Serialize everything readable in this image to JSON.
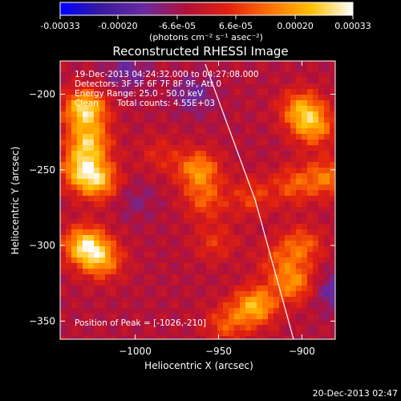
{
  "colorbar": {
    "tick_labels": [
      "-0.00033",
      "-0.00020",
      "-6.6e-05",
      "6.6e-05",
      "0.00020",
      "0.00033"
    ],
    "tick_values": [
      -0.00033,
      -0.0002,
      -6.6e-05,
      6.6e-05,
      0.0002,
      0.00033
    ],
    "range": [
      -0.00033,
      0.00033
    ],
    "units_label": "(photons cm⁻² s⁻¹ asec⁻²)"
  },
  "info": {
    "time_range": "19-Dec-2013 04:24:32.000 to 04:27:08.000",
    "detectors": "Detectors: 3F 5F 6F 7F 8F 9F, Att 0",
    "energy_range": "Energy Range: 25.0 - 50.0 keV",
    "algorithm": "Clean",
    "total_counts": "Total counts: 4.55E+03",
    "peak_position": "Position of Peak = [-1026,-210]"
  },
  "footer": {
    "timestamp": "20-Dec-2013 02:47"
  },
  "chart_data": {
    "type": "heatmap",
    "title": "Reconstructed RHESSI Image",
    "xlabel": "Heliocentric X (arcsec)",
    "ylabel": "Heliocentric Y (arcsec)",
    "xlim": [
      -1045,
      -880
    ],
    "ylim": [
      -362,
      -178
    ],
    "x_ticks": [
      -1000,
      -950,
      -900
    ],
    "x_tick_labels": [
      "−1000",
      "−950",
      "−900"
    ],
    "y_ticks": [
      -200,
      -250,
      -300,
      -350
    ],
    "y_tick_labels": [
      "−200",
      "−250",
      "−300",
      "−350"
    ],
    "colormap": "rainbow-like: blue - purple - red - orange - yellow - white",
    "colormap_stops": [
      "#0000ff",
      "#3a1a9c",
      "#6a2aa0",
      "#b0103a",
      "#e02010",
      "#ff7000",
      "#ffc000",
      "#ffffff"
    ],
    "background_value": -4e-05,
    "sources": [
      {
        "x": -1030,
        "y": -210,
        "value": 0.00032
      },
      {
        "x": -1028,
        "y": -232,
        "value": 0.00026
      },
      {
        "x": -1032,
        "y": -250,
        "value": 0.00024
      },
      {
        "x": -1022,
        "y": -258,
        "value": 0.00022
      },
      {
        "x": -1030,
        "y": -300,
        "value": 0.0003
      },
      {
        "x": -1020,
        "y": -310,
        "value": 0.0002
      },
      {
        "x": -985,
        "y": -240,
        "value": 8e-05
      },
      {
        "x": -962,
        "y": -250,
        "value": 0.00022
      },
      {
        "x": -958,
        "y": -270,
        "value": 0.00014
      },
      {
        "x": -952,
        "y": -298,
        "value": 0.0001
      },
      {
        "x": -930,
        "y": -268,
        "value": 0.00012
      },
      {
        "x": -900,
        "y": -210,
        "value": 0.00022
      },
      {
        "x": -893,
        "y": -222,
        "value": 0.0002
      },
      {
        "x": -885,
        "y": -255,
        "value": 0.00018
      },
      {
        "x": -905,
        "y": -260,
        "value": 0.00014
      },
      {
        "x": -900,
        "y": -300,
        "value": 0.00016
      },
      {
        "x": -905,
        "y": -325,
        "value": 0.0002
      },
      {
        "x": -928,
        "y": -340,
        "value": 0.00026
      },
      {
        "x": -945,
        "y": -352,
        "value": 0.00014
      },
      {
        "x": -915,
        "y": -310,
        "value": 0.0001
      },
      {
        "x": -965,
        "y": -200,
        "value": -0.0001
      },
      {
        "x": -1000,
        "y": -270,
        "value": -6e-05
      },
      {
        "x": -1005,
        "y": -185,
        "value": -0.0001
      },
      {
        "x": -880,
        "y": -330,
        "value": -0.00012
      }
    ],
    "limb_line": [
      [
        -958,
        -180
      ],
      [
        -928,
        -270
      ],
      [
        -905,
        -362
      ]
    ]
  }
}
